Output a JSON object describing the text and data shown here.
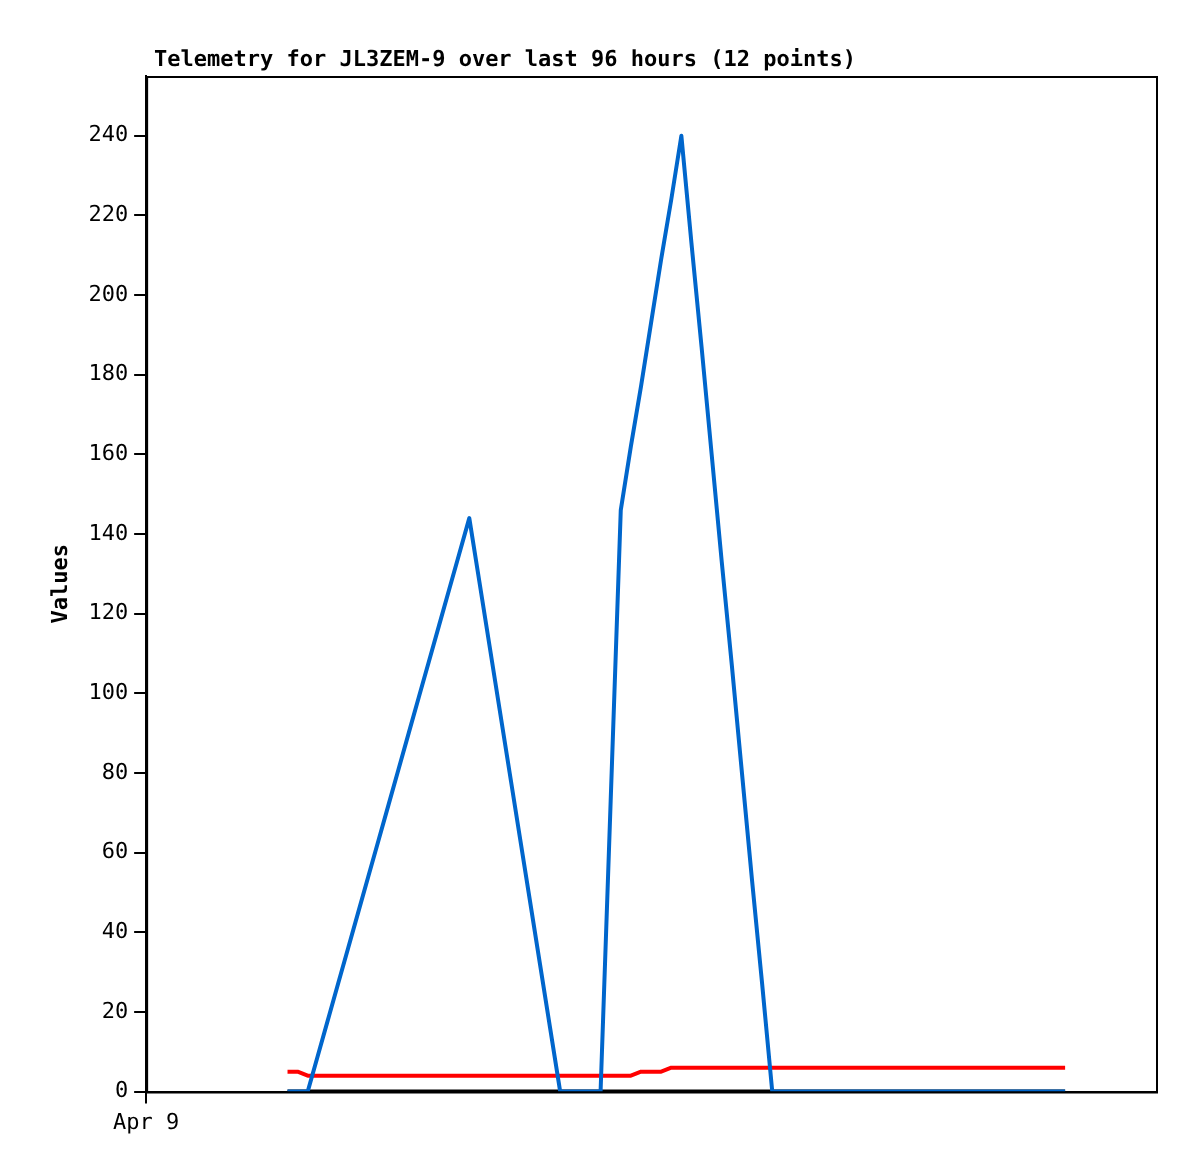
{
  "chart_data": {
    "type": "line",
    "title": "Telemetry for JL3ZEM-9 over last 96 hours (12 points)",
    "ylabel": "Values",
    "categories": [
      "Apr 9",
      null,
      null,
      null,
      null,
      null,
      null,
      null,
      null,
      null,
      null,
      null,
      null,
      null,
      null,
      null,
      null,
      null,
      null,
      null,
      null,
      null,
      null,
      null,
      null,
      null,
      null,
      null,
      null,
      null,
      null,
      null,
      null,
      null,
      null,
      null,
      null,
      null,
      null,
      null,
      null,
      null,
      null,
      null,
      null,
      null,
      null,
      null,
      null,
      null,
      null,
      null,
      null,
      null,
      null,
      null,
      null,
      null,
      null,
      null,
      null,
      null,
      null,
      null,
      null,
      null,
      null,
      null,
      null,
      null,
      null,
      null,
      null,
      null,
      null,
      null,
      null,
      null,
      null,
      null,
      null,
      null,
      null,
      null,
      null,
      null,
      null,
      null,
      null,
      null,
      null,
      null,
      null,
      null,
      null,
      null,
      null,
      null,
      null,
      null,
      null
    ],
    "series": [
      {
        "color": "#0066cc",
        "values": [
          null,
          null,
          null,
          null,
          null,
          null,
          null,
          null,
          null,
          null,
          null,
          null,
          null,
          null,
          0,
          0,
          0,
          9,
          18,
          27,
          36,
          45,
          54,
          63,
          72,
          81,
          90,
          99,
          108,
          117,
          126,
          135,
          144,
          128,
          112,
          96,
          80,
          64,
          48,
          32,
          16,
          0,
          0,
          0,
          0,
          0,
          73,
          146,
          162,
          177,
          193,
          209,
          224,
          240,
          213,
          187,
          160,
          133,
          107,
          80,
          53,
          27,
          0,
          0,
          0,
          0,
          0,
          0,
          0,
          0,
          0,
          0,
          0,
          0,
          0,
          0,
          0,
          0,
          0,
          0,
          0,
          0,
          0,
          0,
          0,
          0,
          0,
          0,
          0,
          0,
          0,
          0,
          null,
          null,
          null,
          null,
          null,
          null,
          null,
          null,
          null
        ]
      },
      {
        "color": "#ff0000",
        "values": [
          null,
          null,
          null,
          null,
          null,
          null,
          null,
          null,
          null,
          null,
          null,
          null,
          null,
          null,
          5,
          5,
          4,
          4,
          4,
          4,
          4,
          4,
          4,
          4,
          4,
          4,
          4,
          4,
          4,
          4,
          4,
          4,
          4,
          4,
          4,
          4,
          4,
          4,
          4,
          4,
          4,
          4,
          4,
          4,
          4,
          4,
          4,
          4,
          4,
          5,
          5,
          5,
          6,
          6,
          6,
          6,
          6,
          6,
          6,
          6,
          6,
          6,
          6,
          6,
          6,
          6,
          6,
          6,
          6,
          6,
          6,
          6,
          6,
          6,
          6,
          6,
          6,
          6,
          6,
          6,
          6,
          6,
          6,
          6,
          6,
          6,
          6,
          6,
          6,
          6,
          6,
          6,
          null,
          null,
          null,
          null,
          null,
          null,
          null,
          null,
          null
        ]
      },
      {
        "color": "#000000",
        "values": [
          null,
          null,
          null,
          null,
          null,
          null,
          null,
          null,
          null,
          null,
          null,
          null,
          null,
          null,
          0,
          0,
          0,
          0,
          0,
          0,
          0,
          0,
          0,
          0,
          0,
          0,
          0,
          0,
          0,
          0,
          0,
          0,
          0,
          0,
          0,
          0,
          0,
          0,
          0,
          0,
          0,
          0,
          0,
          0,
          0,
          0,
          0,
          0,
          0,
          0,
          0,
          0,
          0,
          0,
          0,
          0,
          0,
          0,
          0,
          0,
          0,
          0,
          0,
          0,
          0,
          0,
          0,
          0,
          0,
          0,
          0,
          0,
          0,
          0,
          0,
          0,
          0,
          0,
          0,
          0,
          0,
          0,
          0,
          0,
          0,
          0,
          0,
          0,
          0,
          0,
          0,
          0,
          null,
          null,
          null,
          null,
          null,
          null,
          null,
          null,
          null
        ]
      }
    ],
    "ylim": [
      0,
      255
    ],
    "yticks": [
      0,
      20,
      40,
      60,
      80,
      100,
      120,
      140,
      160,
      180,
      200,
      220,
      240
    ],
    "grid": false,
    "legend": false,
    "marker": "none",
    "line_style": "solid"
  }
}
